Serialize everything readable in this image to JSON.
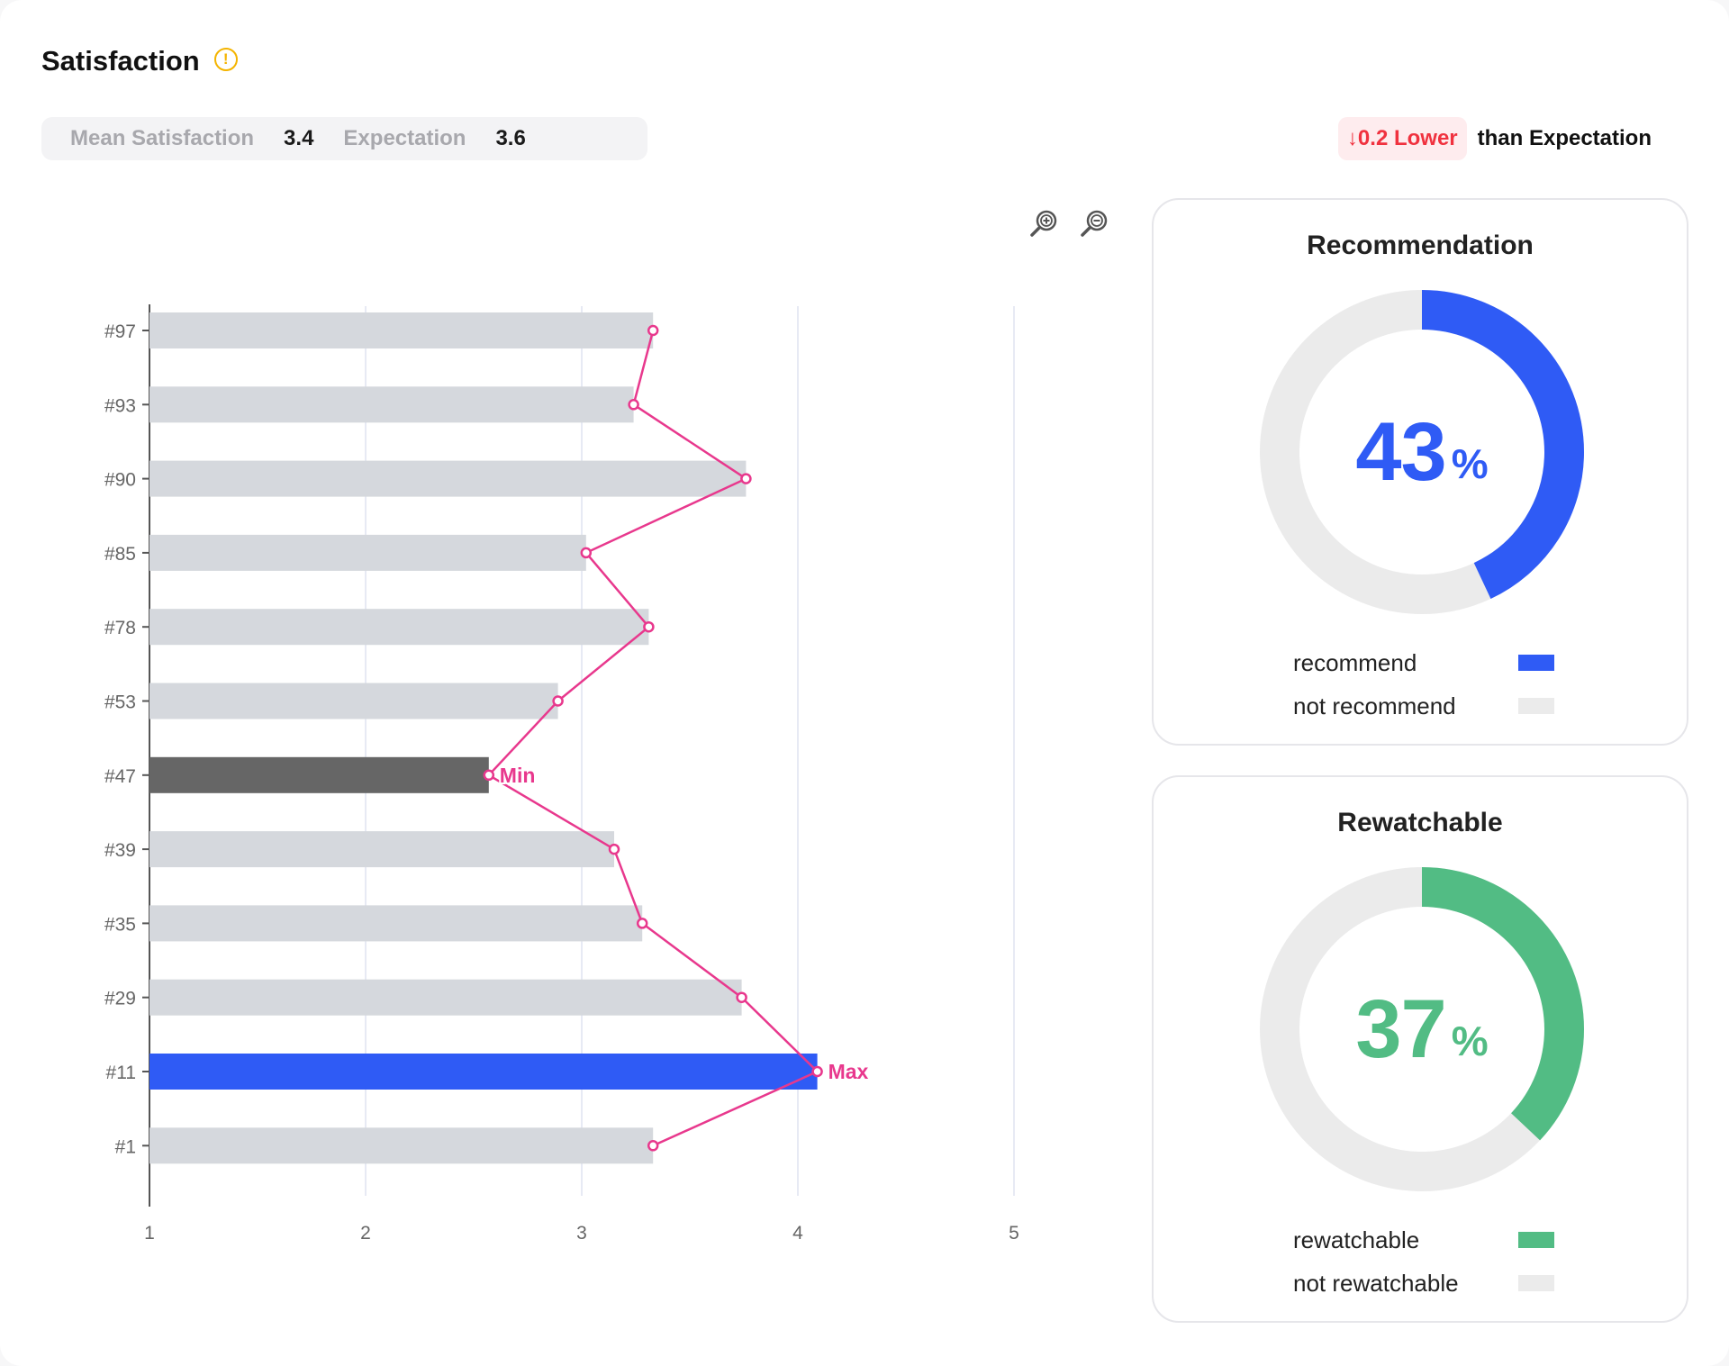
{
  "header": {
    "title": "Satisfaction",
    "info_icon": "!"
  },
  "stats": {
    "mean_label": "Mean Satisfaction",
    "mean_value": "3.4",
    "expectation_label": "Expectation",
    "expectation_value": "3.6"
  },
  "comparison": {
    "badge": "↓0.2 Lower",
    "text": "than Expectation",
    "badge_color": "#f0323f"
  },
  "toolbar": {
    "zoom_in_icon": "zoom-in-icon",
    "zoom_out_icon": "zoom-out-icon"
  },
  "chart_data": {
    "type": "bar",
    "orientation": "horizontal",
    "categories": [
      "#97",
      "#93",
      "#90",
      "#85",
      "#78",
      "#53",
      "#47",
      "#39",
      "#35",
      "#29",
      "#11",
      "#1"
    ],
    "values": [
      3.33,
      3.24,
      3.76,
      3.02,
      3.31,
      2.89,
      2.57,
      3.15,
      3.28,
      3.74,
      4.09,
      3.33
    ],
    "xlim": [
      1,
      5
    ],
    "x_ticks": [
      "1",
      "2",
      "3",
      "4",
      "5"
    ],
    "grid": true,
    "overlay_line": true,
    "annotations": [
      {
        "category": "#47",
        "label": "Min"
      },
      {
        "category": "#11",
        "label": "Max"
      }
    ],
    "colors": {
      "bar": "#d5d8dd",
      "min_bar": "#666666",
      "max_bar": "#2f5bf5",
      "line": "#e8388d"
    }
  },
  "recommendation": {
    "title": "Recommendation",
    "value": "43",
    "percent_sign": "%",
    "fraction": 0.43,
    "color": "#2f5bf5",
    "rest_color": "#ebebeb",
    "legend": [
      {
        "label": "recommend",
        "color": "#2f5bf5"
      },
      {
        "label": "not recommend",
        "color": "#ebebeb"
      }
    ]
  },
  "rewatchable": {
    "title": "Rewatchable",
    "value": "37",
    "percent_sign": "%",
    "fraction": 0.37,
    "color": "#52bc84",
    "rest_color": "#ebebeb",
    "legend": [
      {
        "label": "rewatchable",
        "color": "#52bc84"
      },
      {
        "label": "not rewatchable",
        "color": "#ebebeb"
      }
    ]
  }
}
